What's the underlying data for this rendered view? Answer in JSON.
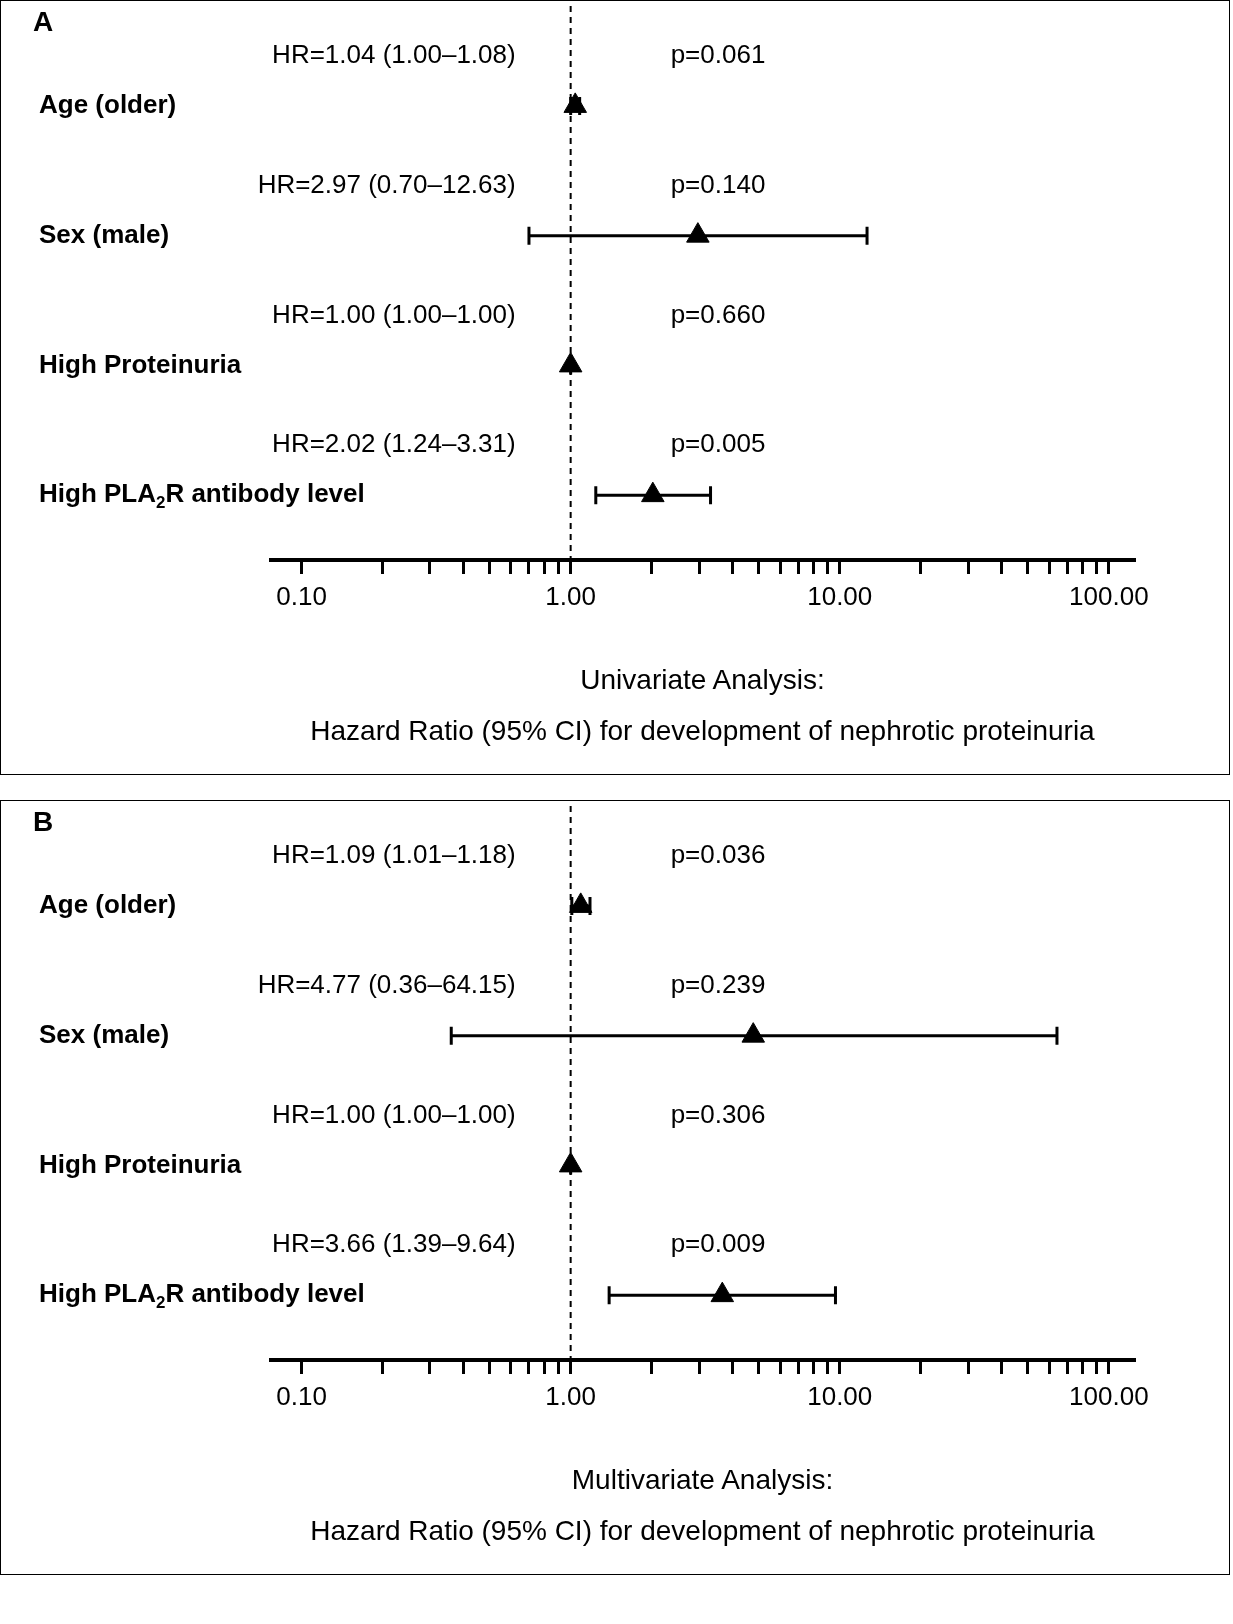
{
  "chart_data": [
    {
      "type": "scatter",
      "title": "A",
      "xlabel": "Univariate Analysis:\nHazard Ratio (95% CI) for development of nephrotic proteinuria",
      "orientation": "horizontal",
      "log": "x",
      "marker": "triangle",
      "grid": false,
      "legend": false,
      "categories": [
        "Age (older)",
        "Sex (male)",
        "High Proteinuria",
        "High PLA$_{2}$R antibody level"
      ],
      "values": [
        1.04,
        2.97,
        1.0,
        2.02
      ],
      "color": "#000000",
      "errors": [
        [
          1.0,
          1.08
        ],
        [
          0.7,
          12.63
        ],
        [
          1.0,
          1.0
        ],
        [
          1.24,
          3.31
        ]
      ],
      "xlim": [
        0.077,
        124
      ],
      "xticks": [
        {
          "value": 0.1,
          "label": "0.10"
        },
        {
          "value": 0.2,
          "label": null
        },
        {
          "value": 0.3,
          "label": null
        },
        {
          "value": 0.4,
          "label": null
        },
        {
          "value": 0.5,
          "label": null
        },
        {
          "value": 0.6,
          "label": null
        },
        {
          "value": 0.7,
          "label": null
        },
        {
          "value": 0.8,
          "label": null
        },
        {
          "value": 0.9,
          "label": null
        },
        {
          "value": 1,
          "label": "1.00"
        },
        {
          "value": 2,
          "label": null
        },
        {
          "value": 3,
          "label": null
        },
        {
          "value": 4,
          "label": null
        },
        {
          "value": 5,
          "label": null
        },
        {
          "value": 6,
          "label": null
        },
        {
          "value": 7,
          "label": null
        },
        {
          "value": 8,
          "label": null
        },
        {
          "value": 9,
          "label": null
        },
        {
          "value": 10,
          "label": "10.00"
        },
        {
          "value": 20,
          "label": null
        },
        {
          "value": 30,
          "label": null
        },
        {
          "value": 40,
          "label": null
        },
        {
          "value": 50,
          "label": null
        },
        {
          "value": 60,
          "label": null
        },
        {
          "value": 70,
          "label": null
        },
        {
          "value": 80,
          "label": null
        },
        {
          "value": 90,
          "label": null
        },
        {
          "value": 100,
          "label": "100.00"
        }
      ],
      "ref_lines": [
        {
          "axis": "x",
          "value": 1,
          "line_style": "dashed"
        }
      ],
      "annotations": [
        "HR=1.04 (1.00–1.08)",
        "p=0.061",
        "HR=2.97 (0.70–12.63)",
        "p=0.140",
        "HR=1.00 (1.00–1.00)",
        "p=0.660",
        "HR=2.02 (1.24–3.31)",
        "p=0.005"
      ]
    },
    {
      "type": "scatter",
      "title": "B",
      "xlabel": "Multivariate Analysis:\nHazard Ratio (95% CI) for development of nephrotic proteinuria",
      "orientation": "horizontal",
      "log": "x",
      "marker": "triangle",
      "grid": false,
      "legend": false,
      "categories": [
        "Age (older)",
        "Sex (male)",
        "High Proteinuria",
        "High PLA$_{2}$R antibody level"
      ],
      "values": [
        1.09,
        4.77,
        1.0,
        3.66
      ],
      "color": "#000000",
      "errors": [
        [
          1.01,
          1.18
        ],
        [
          0.36,
          64.15
        ],
        [
          1.0,
          1.0
        ],
        [
          1.39,
          9.64
        ]
      ],
      "xlim": [
        0.077,
        124
      ],
      "xticks": [
        {
          "value": 0.1,
          "label": "0.10"
        },
        {
          "value": 0.2,
          "label": null
        },
        {
          "value": 0.3,
          "label": null
        },
        {
          "value": 0.4,
          "label": null
        },
        {
          "value": 0.5,
          "label": null
        },
        {
          "value": 0.6,
          "label": null
        },
        {
          "value": 0.7,
          "label": null
        },
        {
          "value": 0.8,
          "label": null
        },
        {
          "value": 0.9,
          "label": null
        },
        {
          "value": 1,
          "label": "1.00"
        },
        {
          "value": 2,
          "label": null
        },
        {
          "value": 3,
          "label": null
        },
        {
          "value": 4,
          "label": null
        },
        {
          "value": 5,
          "label": null
        },
        {
          "value": 6,
          "label": null
        },
        {
          "value": 7,
          "label": null
        },
        {
          "value": 8,
          "label": null
        },
        {
          "value": 9,
          "label": null
        },
        {
          "value": 10,
          "label": "10.00"
        },
        {
          "value": 20,
          "label": null
        },
        {
          "value": 30,
          "label": null
        },
        {
          "value": 40,
          "label": null
        },
        {
          "value": 50,
          "label": null
        },
        {
          "value": 60,
          "label": null
        },
        {
          "value": 70,
          "label": null
        },
        {
          "value": 80,
          "label": null
        },
        {
          "value": 90,
          "label": null
        },
        {
          "value": 100,
          "label": "100.00"
        }
      ],
      "ref_lines": [
        {
          "axis": "x",
          "value": 1,
          "line_style": "dashed"
        }
      ],
      "annotations": [
        "HR=1.09 (1.01–1.18)",
        "p=0.036",
        "HR=4.77 (0.36–64.15)",
        "p=0.239",
        "HR=1.00 (1.00–1.00)",
        "p=0.306",
        "HR=3.66 (1.39–9.64)",
        "p=0.009"
      ]
    }
  ]
}
